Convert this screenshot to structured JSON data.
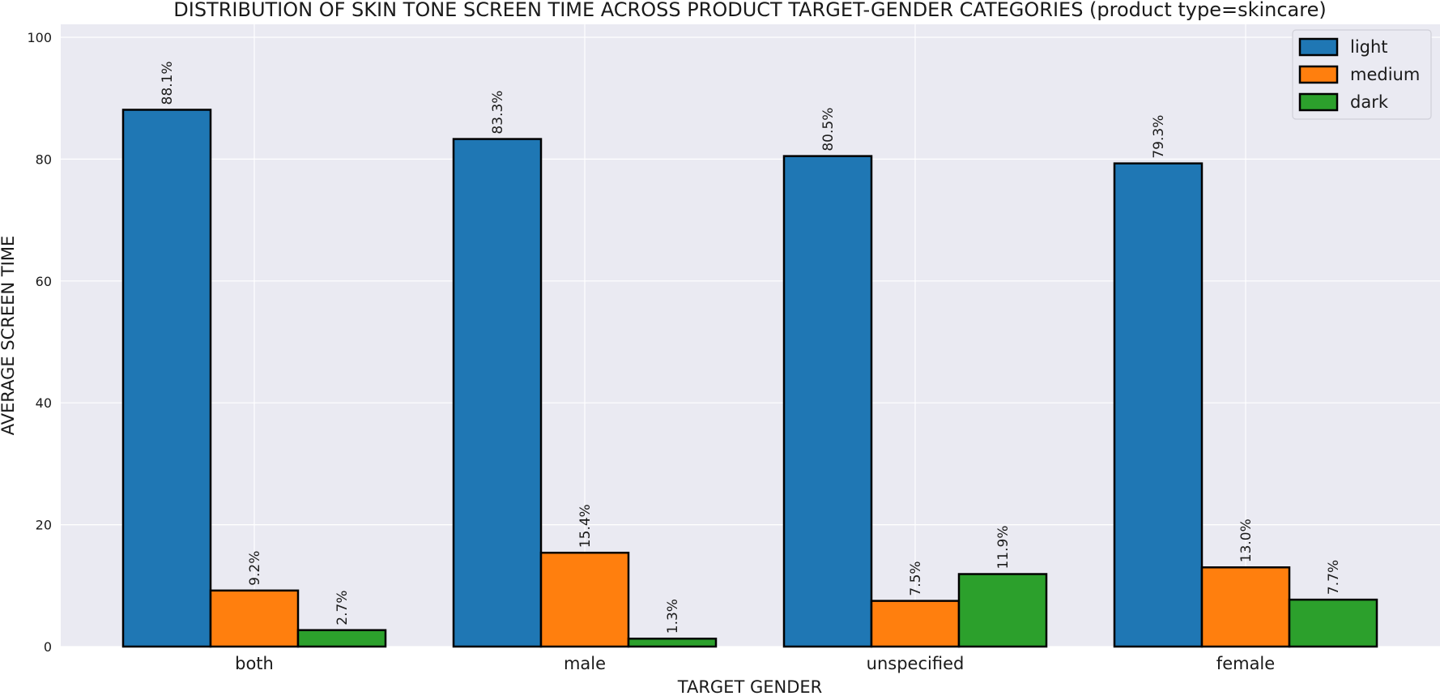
{
  "chart_data": {
    "type": "bar",
    "title": "DISTRIBUTION OF SKIN TONE SCREEN TIME ACROSS PRODUCT TARGET-GENDER CATEGORIES (product type=skincare)",
    "xlabel": "TARGET GENDER",
    "ylabel": "AVERAGE SCREEN TIME",
    "categories": [
      "both",
      "male",
      "unspecified",
      "female"
    ],
    "series": [
      {
        "name": "light",
        "color": "#1f77b4",
        "values": [
          88.1,
          83.3,
          80.5,
          79.3
        ],
        "labels": [
          "88.1%",
          "83.3%",
          "80.5%",
          "79.3%"
        ]
      },
      {
        "name": "medium",
        "color": "#ff7f0e",
        "values": [
          9.2,
          15.4,
          7.5,
          13.0
        ],
        "labels": [
          "9.2%",
          "15.4%",
          "7.5%",
          "13.0%"
        ]
      },
      {
        "name": "dark",
        "color": "#2ca02c",
        "values": [
          2.7,
          1.3,
          11.9,
          7.7
        ],
        "labels": [
          "2.7%",
          "1.3%",
          "11.9%",
          "7.7%"
        ]
      }
    ],
    "ylim": [
      0,
      102
    ],
    "yticks": [
      0,
      20,
      40,
      60,
      80,
      100
    ],
    "grid": true,
    "legend_position": "top-right",
    "background": "#eaeaf2"
  }
}
